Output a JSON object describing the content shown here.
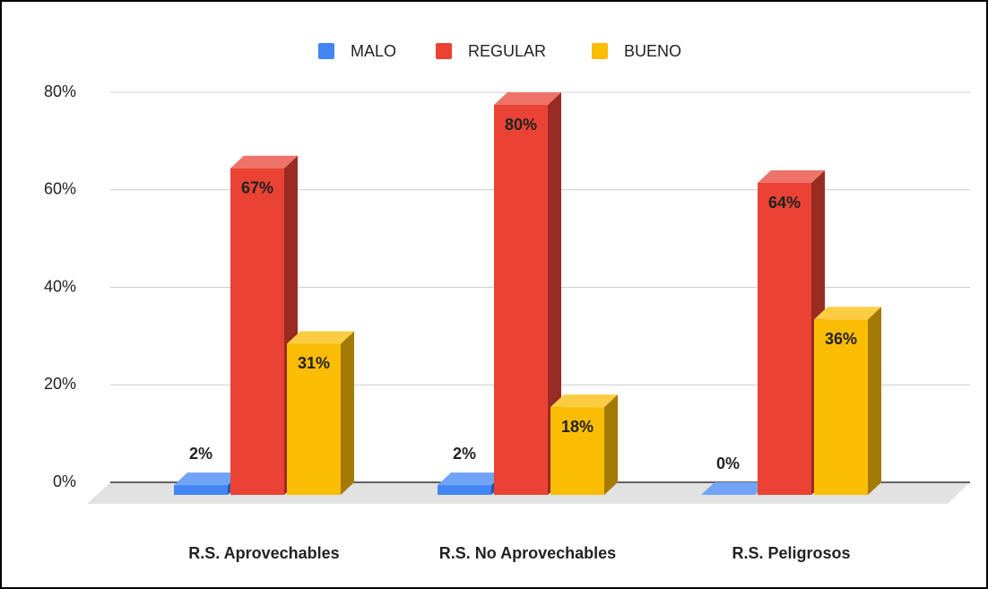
{
  "chart_data": {
    "type": "bar3d",
    "categories": [
      "R.S. Aprovechables",
      "R.S. No Aprovechables",
      "R.S. Peligrosos"
    ],
    "series": [
      {
        "name": "MALO",
        "color": "#4285f4",
        "values": [
          2,
          2,
          0
        ],
        "value_labels": [
          "2%",
          "2%",
          "0%"
        ]
      },
      {
        "name": "REGULAR",
        "color": "#ea4335",
        "values": [
          67,
          80,
          64
        ],
        "value_labels": [
          "67%",
          "80%",
          "64%"
        ]
      },
      {
        "name": "BUENO",
        "color": "#fbbc04",
        "values": [
          31,
          18,
          36
        ],
        "value_labels": [
          "31%",
          "18%",
          "36%"
        ]
      }
    ],
    "ylim": [
      0,
      80
    ],
    "yticks": [
      {
        "value": 0,
        "label": "0%"
      },
      {
        "value": 20,
        "label": "20%"
      },
      {
        "value": 40,
        "label": "40%"
      },
      {
        "value": 60,
        "label": "60%"
      },
      {
        "value": 80,
        "label": "80%"
      }
    ],
    "grid": true,
    "legend": "top"
  }
}
